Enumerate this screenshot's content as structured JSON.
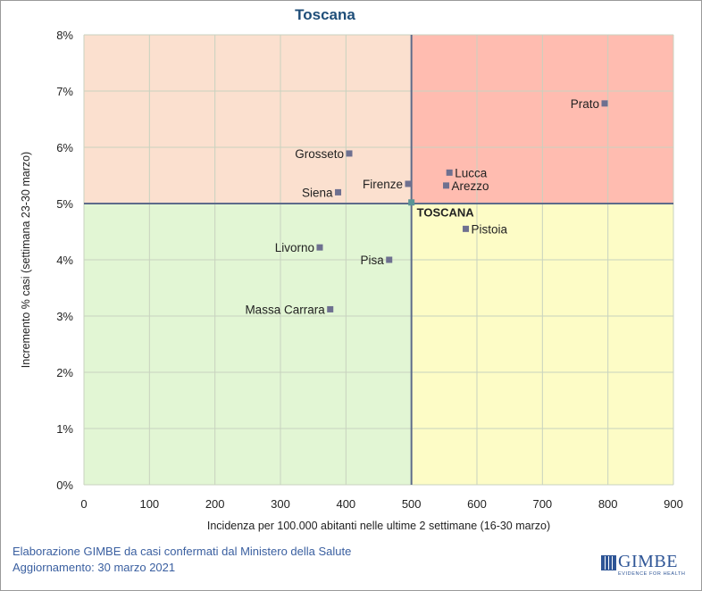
{
  "chart_data": {
    "type": "scatter",
    "title": "Toscana",
    "xlabel": "Incidenza per 100.000 abitanti nelle ultime 2 settimane (16-30 marzo)",
    "ylabel": "Incremento % casi (settimana 23-30 marzo)",
    "xlim": [
      0,
      900
    ],
    "ylim": [
      0,
      8
    ],
    "xticks": [
      0,
      100,
      200,
      300,
      400,
      500,
      600,
      700,
      800,
      900
    ],
    "yticks": [
      0,
      1,
      2,
      3,
      4,
      5,
      6,
      7,
      8
    ],
    "ytick_suffix": "%",
    "grid": true,
    "reference_lines": {
      "x": 500,
      "y": 5
    },
    "quadrants": {
      "top_left": "#fbe0cf",
      "top_right": "#ffbcb0",
      "bottom_left": "#e2f6d4",
      "bottom_right": "#fdfcc6"
    },
    "colors": {
      "title": "#1f4e79",
      "marker": "#6e7090",
      "marker_reference": "#5a9496",
      "reference_line": "#5d6b8a",
      "grid": "#c8d2bf"
    },
    "points": [
      {
        "name": "Prato",
        "x": 795,
        "y": 6.78,
        "label_pos": "left"
      },
      {
        "name": "Grosseto",
        "x": 405,
        "y": 5.89,
        "label_pos": "left"
      },
      {
        "name": "Lucca",
        "x": 558,
        "y": 5.55,
        "label_pos": "right"
      },
      {
        "name": "Firenze",
        "x": 495,
        "y": 5.35,
        "label_pos": "left"
      },
      {
        "name": "Arezzo",
        "x": 553,
        "y": 5.32,
        "label_pos": "right"
      },
      {
        "name": "Siena",
        "x": 388,
        "y": 5.2,
        "label_pos": "left"
      },
      {
        "name": "TOSCANA",
        "x": 500,
        "y": 5.02,
        "label_pos": "below-right",
        "bold": true,
        "reference": true
      },
      {
        "name": "Pistoia",
        "x": 583,
        "y": 4.55,
        "label_pos": "right"
      },
      {
        "name": "Livorno",
        "x": 360,
        "y": 4.22,
        "label_pos": "left"
      },
      {
        "name": "Pisa",
        "x": 466,
        "y": 4.0,
        "label_pos": "left"
      },
      {
        "name": "Massa Carrara",
        "x": 376,
        "y": 3.12,
        "label_pos": "left"
      }
    ]
  },
  "footer": {
    "line1": "Elaborazione GIMBE da casi confermati dal Ministero della Salute",
    "line2": "Aggiornamento: 30 marzo 2021"
  },
  "logo": {
    "word": "GIMBE",
    "tagline": "EVIDENCE FOR HEALTH"
  }
}
